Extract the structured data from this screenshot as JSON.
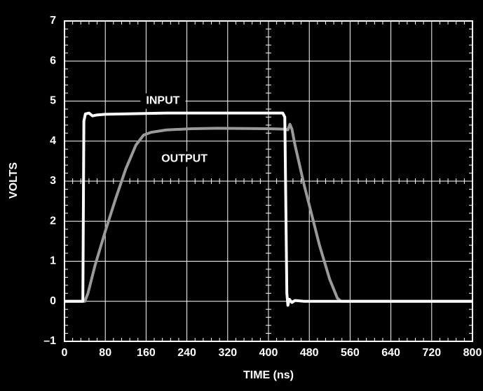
{
  "chart_data": {
    "type": "line",
    "xlabel": "TIME (ns)",
    "ylabel": "VOLTS",
    "xlim": [
      0,
      800
    ],
    "xticks": [
      0,
      80,
      160,
      240,
      320,
      400,
      480,
      560,
      640,
      720,
      800
    ],
    "ylim": [
      -1,
      7
    ],
    "yticks": [
      {
        "value": -1,
        "label": "–1"
      },
      0,
      1,
      2,
      3,
      4,
      5,
      6,
      7
    ],
    "grid": true,
    "series": [
      {
        "name": "INPUT",
        "color": "#ffffff",
        "x": [
          0,
          36,
          38,
          41,
          48,
          55,
          62,
          80,
          200,
          300,
          400,
          428,
          432,
          436,
          438,
          441,
          446,
          452,
          470,
          800
        ],
        "values": [
          0,
          0,
          4.5,
          4.68,
          4.7,
          4.63,
          4.65,
          4.67,
          4.7,
          4.7,
          4.7,
          4.7,
          4.6,
          0.2,
          -0.1,
          0.05,
          -0.03,
          0.02,
          0,
          0
        ]
      },
      {
        "name": "OUTPUT",
        "color": "#9a9a9a",
        "x": [
          0,
          40,
          46,
          60,
          80,
          100,
          120,
          140,
          155,
          170,
          200,
          250,
          300,
          400,
          430,
          438,
          442,
          446,
          452,
          470,
          500,
          520,
          535,
          542,
          560,
          800
        ],
        "values": [
          0,
          0,
          0.2,
          0.9,
          1.75,
          2.55,
          3.3,
          3.9,
          4.15,
          4.22,
          4.28,
          4.31,
          4.32,
          4.31,
          4.3,
          4.28,
          4.42,
          4.3,
          3.9,
          2.9,
          1.4,
          0.55,
          0.08,
          0,
          0,
          0
        ]
      }
    ],
    "annotations": [
      {
        "text": "INPUT",
        "x": 160,
        "y": 5.0
      },
      {
        "text": "OUTPUT",
        "x": 190,
        "y": 3.55
      }
    ]
  }
}
